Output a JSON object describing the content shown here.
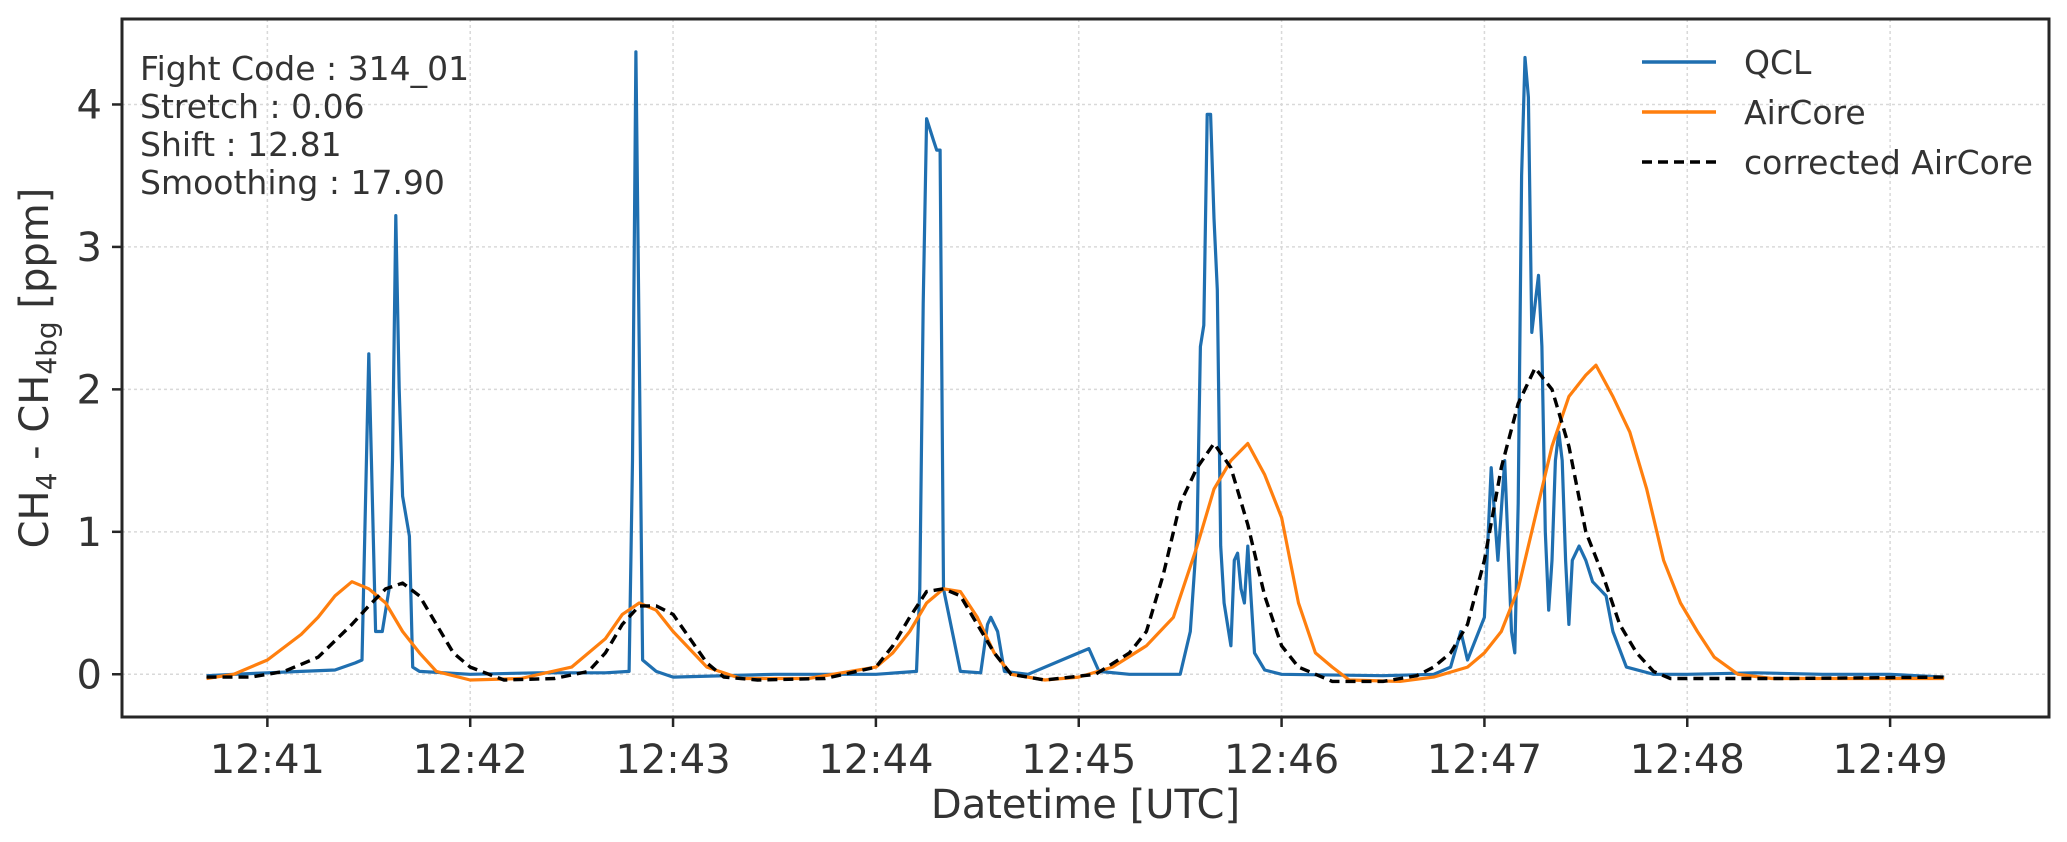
{
  "chart_data": {
    "type": "line",
    "xlabel": "Datetime [UTC]",
    "ylabel": {
      "base": "CH",
      "sub1": "4",
      "mid": " - CH",
      "sub2": "4bg",
      "tail": " [ppm]"
    },
    "x_ticks": [
      "12:41",
      "12:42",
      "12:43",
      "12:44",
      "12:45",
      "12:46",
      "12:47",
      "12:48",
      "12:49"
    ],
    "y_ticks": [
      "0",
      "1",
      "2",
      "3",
      "4"
    ],
    "xlim": [
      "12:40:17",
      "12:49:47"
    ],
    "ylim": [
      -0.3,
      4.6
    ],
    "grid": true,
    "legend_position": "top-right",
    "annotations": [
      "Fight Code : 314_01",
      "Stretch : 0.06",
      "Shift : 12.81",
      "Smoothing : 17.90"
    ],
    "series": [
      {
        "name": "QCL",
        "color": "#1f6fb0",
        "style": "solid",
        "points": [
          [
            "12:40:42",
            -0.01
          ],
          [
            "12:40:50",
            0.0
          ],
          [
            "12:41:00",
            0.01
          ],
          [
            "12:41:10",
            0.02
          ],
          [
            "12:41:20",
            0.03
          ],
          [
            "12:41:26",
            0.08
          ],
          [
            "12:41:28",
            0.1
          ],
          [
            "12:41:30",
            2.25
          ],
          [
            "12:41:32",
            0.3
          ],
          [
            "12:41:34",
            0.3
          ],
          [
            "12:41:36",
            0.6
          ],
          [
            "12:41:37",
            1.5
          ],
          [
            "12:41:38",
            3.22
          ],
          [
            "12:41:39",
            2.0
          ],
          [
            "12:41:40",
            1.25
          ],
          [
            "12:41:42",
            0.97
          ],
          [
            "12:41:43",
            0.05
          ],
          [
            "12:41:45",
            0.02
          ],
          [
            "12:42:00",
            0.0
          ],
          [
            "12:42:20",
            0.01
          ],
          [
            "12:42:40",
            0.01
          ],
          [
            "12:42:47",
            0.02
          ],
          [
            "12:42:48",
            1.5
          ],
          [
            "12:42:49",
            4.37
          ],
          [
            "12:42:50",
            2.3
          ],
          [
            "12:42:51",
            0.1
          ],
          [
            "12:42:55",
            0.02
          ],
          [
            "12:43:00",
            -0.02
          ],
          [
            "12:43:30",
            0.0
          ],
          [
            "12:44:00",
            0.0
          ],
          [
            "12:44:12",
            0.02
          ],
          [
            "12:44:13",
            0.6
          ],
          [
            "12:44:14",
            2.6
          ],
          [
            "12:44:15",
            3.9
          ],
          [
            "12:44:17",
            3.75
          ],
          [
            "12:44:18",
            3.68
          ],
          [
            "12:44:19",
            3.68
          ],
          [
            "12:44:20",
            0.6
          ],
          [
            "12:44:25",
            0.02
          ],
          [
            "12:44:31",
            0.01
          ],
          [
            "12:44:33",
            0.35
          ],
          [
            "12:44:34",
            0.4
          ],
          [
            "12:44:36",
            0.3
          ],
          [
            "12:44:38",
            0.02
          ],
          [
            "12:44:45",
            0.0
          ],
          [
            "12:44:55",
            0.1
          ],
          [
            "12:45:00",
            0.15
          ],
          [
            "12:45:03",
            0.18
          ],
          [
            "12:45:06",
            0.02
          ],
          [
            "12:45:15",
            0.0
          ],
          [
            "12:45:30",
            0.0
          ],
          [
            "12:45:33",
            0.3
          ],
          [
            "12:45:35",
            1.0
          ],
          [
            "12:45:36",
            2.3
          ],
          [
            "12:45:37",
            2.45
          ],
          [
            "12:45:38",
            3.93
          ],
          [
            "12:45:39",
            3.93
          ],
          [
            "12:45:40",
            3.2
          ],
          [
            "12:45:41",
            2.7
          ],
          [
            "12:45:42",
            0.9
          ],
          [
            "12:45:43",
            0.5
          ],
          [
            "12:45:45",
            0.2
          ],
          [
            "12:45:46",
            0.8
          ],
          [
            "12:45:47",
            0.85
          ],
          [
            "12:45:48",
            0.6
          ],
          [
            "12:45:49",
            0.5
          ],
          [
            "12:45:50",
            0.9
          ],
          [
            "12:45:52",
            0.15
          ],
          [
            "12:45:55",
            0.03
          ],
          [
            "12:46:00",
            0.0
          ],
          [
            "12:46:30",
            -0.01
          ],
          [
            "12:46:45",
            0.0
          ],
          [
            "12:46:50",
            0.05
          ],
          [
            "12:46:53",
            0.3
          ],
          [
            "12:46:55",
            0.1
          ],
          [
            "12:47:00",
            0.4
          ],
          [
            "12:47:02",
            1.45
          ],
          [
            "12:47:04",
            0.8
          ],
          [
            "12:47:06",
            1.5
          ],
          [
            "12:47:08",
            0.3
          ],
          [
            "12:47:09",
            0.15
          ],
          [
            "12:47:10",
            1.2
          ],
          [
            "12:47:11",
            3.5
          ],
          [
            "12:47:12",
            4.33
          ],
          [
            "12:47:13",
            4.05
          ],
          [
            "12:47:14",
            2.4
          ],
          [
            "12:47:15",
            2.6
          ],
          [
            "12:47:16",
            2.8
          ],
          [
            "12:47:17",
            2.3
          ],
          [
            "12:47:18",
            1.0
          ],
          [
            "12:47:19",
            0.45
          ],
          [
            "12:47:20",
            0.8
          ],
          [
            "12:47:21",
            1.5
          ],
          [
            "12:47:22",
            1.7
          ],
          [
            "12:47:23",
            1.5
          ],
          [
            "12:47:24",
            0.8
          ],
          [
            "12:47:25",
            0.35
          ],
          [
            "12:47:26",
            0.8
          ],
          [
            "12:47:28",
            0.9
          ],
          [
            "12:47:30",
            0.8
          ],
          [
            "12:47:32",
            0.65
          ],
          [
            "12:47:34",
            0.6
          ],
          [
            "12:47:36",
            0.55
          ],
          [
            "12:47:38",
            0.3
          ],
          [
            "12:47:42",
            0.05
          ],
          [
            "12:47:50",
            0.0
          ],
          [
            "12:48:00",
            0.0
          ],
          [
            "12:48:20",
            0.01
          ],
          [
            "12:48:40",
            0.0
          ],
          [
            "12:49:00",
            0.0
          ],
          [
            "12:49:16",
            -0.02
          ]
        ]
      },
      {
        "name": "AirCore",
        "color": "#ff7f0e",
        "style": "solid",
        "points": [
          [
            "12:40:42",
            -0.03
          ],
          [
            "12:40:50",
            0.0
          ],
          [
            "12:41:00",
            0.1
          ],
          [
            "12:41:10",
            0.28
          ],
          [
            "12:41:15",
            0.4
          ],
          [
            "12:41:20",
            0.55
          ],
          [
            "12:41:25",
            0.65
          ],
          [
            "12:41:30",
            0.6
          ],
          [
            "12:41:35",
            0.5
          ],
          [
            "12:41:40",
            0.3
          ],
          [
            "12:41:45",
            0.15
          ],
          [
            "12:41:50",
            0.02
          ],
          [
            "12:42:00",
            -0.04
          ],
          [
            "12:42:15",
            -0.03
          ],
          [
            "12:42:30",
            0.05
          ],
          [
            "12:42:40",
            0.25
          ],
          [
            "12:42:45",
            0.42
          ],
          [
            "12:42:50",
            0.5
          ],
          [
            "12:42:55",
            0.45
          ],
          [
            "12:43:00",
            0.3
          ],
          [
            "12:43:10",
            0.05
          ],
          [
            "12:43:20",
            -0.03
          ],
          [
            "12:43:40",
            -0.03
          ],
          [
            "12:44:00",
            0.05
          ],
          [
            "12:44:05",
            0.15
          ],
          [
            "12:44:10",
            0.3
          ],
          [
            "12:44:15",
            0.5
          ],
          [
            "12:44:20",
            0.6
          ],
          [
            "12:44:25",
            0.58
          ],
          [
            "12:44:30",
            0.4
          ],
          [
            "12:44:35",
            0.15
          ],
          [
            "12:44:40",
            0.0
          ],
          [
            "12:44:50",
            -0.04
          ],
          [
            "12:45:00",
            -0.02
          ],
          [
            "12:45:10",
            0.05
          ],
          [
            "12:45:20",
            0.2
          ],
          [
            "12:45:28",
            0.4
          ],
          [
            "12:45:35",
            0.9
          ],
          [
            "12:45:40",
            1.3
          ],
          [
            "12:45:45",
            1.5
          ],
          [
            "12:45:50",
            1.62
          ],
          [
            "12:45:55",
            1.4
          ],
          [
            "12:46:00",
            1.1
          ],
          [
            "12:46:05",
            0.5
          ],
          [
            "12:46:10",
            0.15
          ],
          [
            "12:46:15",
            0.05
          ],
          [
            "12:46:20",
            -0.04
          ],
          [
            "12:46:35",
            -0.05
          ],
          [
            "12:46:45",
            -0.02
          ],
          [
            "12:46:55",
            0.05
          ],
          [
            "12:47:00",
            0.15
          ],
          [
            "12:47:05",
            0.3
          ],
          [
            "12:47:10",
            0.6
          ],
          [
            "12:47:15",
            1.1
          ],
          [
            "12:47:20",
            1.6
          ],
          [
            "12:47:25",
            1.95
          ],
          [
            "12:47:30",
            2.1
          ],
          [
            "12:47:33",
            2.17
          ],
          [
            "12:47:38",
            1.95
          ],
          [
            "12:47:43",
            1.7
          ],
          [
            "12:47:48",
            1.3
          ],
          [
            "12:47:53",
            0.8
          ],
          [
            "12:47:58",
            0.5
          ],
          [
            "12:48:03",
            0.3
          ],
          [
            "12:48:08",
            0.12
          ],
          [
            "12:48:15",
            0.0
          ],
          [
            "12:48:25",
            -0.03
          ],
          [
            "12:49:00",
            -0.03
          ],
          [
            "12:49:16",
            -0.03
          ]
        ]
      },
      {
        "name": "corrected AirCore",
        "color": "#000000",
        "style": "dashed",
        "points": [
          [
            "12:40:42",
            -0.02
          ],
          [
            "12:40:55",
            -0.02
          ],
          [
            "12:41:05",
            0.02
          ],
          [
            "12:41:15",
            0.12
          ],
          [
            "12:41:25",
            0.35
          ],
          [
            "12:41:30",
            0.48
          ],
          [
            "12:41:35",
            0.6
          ],
          [
            "12:41:40",
            0.64
          ],
          [
            "12:41:45",
            0.55
          ],
          [
            "12:41:50",
            0.35
          ],
          [
            "12:41:55",
            0.15
          ],
          [
            "12:42:00",
            0.05
          ],
          [
            "12:42:10",
            -0.04
          ],
          [
            "12:42:25",
            -0.03
          ],
          [
            "12:42:35",
            0.02
          ],
          [
            "12:42:40",
            0.15
          ],
          [
            "12:42:45",
            0.35
          ],
          [
            "12:42:50",
            0.48
          ],
          [
            "12:42:55",
            0.48
          ],
          [
            "12:43:00",
            0.42
          ],
          [
            "12:43:05",
            0.25
          ],
          [
            "12:43:10",
            0.08
          ],
          [
            "12:43:15",
            -0.02
          ],
          [
            "12:43:25",
            -0.04
          ],
          [
            "12:43:45",
            -0.03
          ],
          [
            "12:44:00",
            0.05
          ],
          [
            "12:44:05",
            0.2
          ],
          [
            "12:44:10",
            0.4
          ],
          [
            "12:44:15",
            0.58
          ],
          [
            "12:44:20",
            0.6
          ],
          [
            "12:44:25",
            0.55
          ],
          [
            "12:44:30",
            0.35
          ],
          [
            "12:44:35",
            0.15
          ],
          [
            "12:44:40",
            0.0
          ],
          [
            "12:44:50",
            -0.04
          ],
          [
            "12:45:05",
            0.0
          ],
          [
            "12:45:15",
            0.15
          ],
          [
            "12:45:20",
            0.3
          ],
          [
            "12:45:25",
            0.7
          ],
          [
            "12:45:30",
            1.2
          ],
          [
            "12:45:35",
            1.45
          ],
          [
            "12:45:40",
            1.62
          ],
          [
            "12:45:45",
            1.45
          ],
          [
            "12:45:50",
            1.05
          ],
          [
            "12:45:55",
            0.55
          ],
          [
            "12:46:00",
            0.2
          ],
          [
            "12:46:05",
            0.05
          ],
          [
            "12:46:15",
            -0.05
          ],
          [
            "12:46:30",
            -0.05
          ],
          [
            "12:46:40",
            -0.01
          ],
          [
            "12:46:45",
            0.05
          ],
          [
            "12:46:50",
            0.15
          ],
          [
            "12:46:55",
            0.35
          ],
          [
            "12:47:00",
            0.8
          ],
          [
            "12:47:05",
            1.45
          ],
          [
            "12:47:10",
            1.9
          ],
          [
            "12:47:15",
            2.15
          ],
          [
            "12:47:20",
            2.0
          ],
          [
            "12:47:25",
            1.6
          ],
          [
            "12:47:30",
            1.0
          ],
          [
            "12:47:35",
            0.7
          ],
          [
            "12:47:40",
            0.35
          ],
          [
            "12:47:45",
            0.15
          ],
          [
            "12:47:50",
            0.02
          ],
          [
            "12:47:55",
            -0.03
          ],
          [
            "12:48:30",
            -0.03
          ],
          [
            "12:49:16",
            -0.02
          ]
        ]
      }
    ]
  }
}
